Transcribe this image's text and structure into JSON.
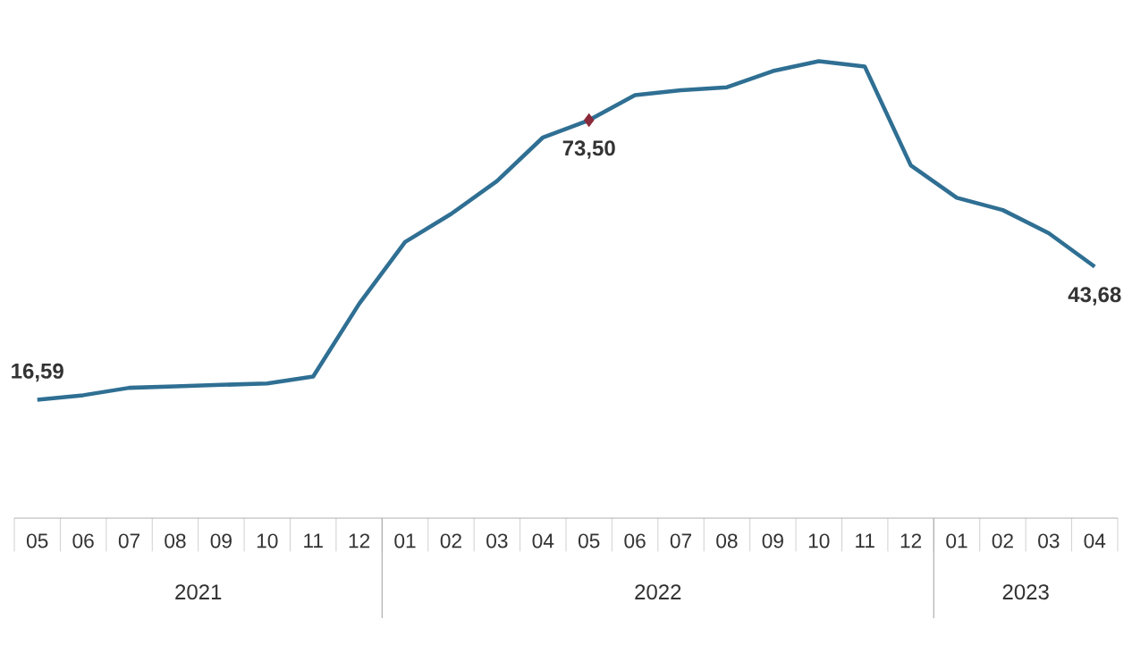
{
  "chart_data": {
    "type": "line",
    "categories": [
      "05",
      "06",
      "07",
      "08",
      "09",
      "10",
      "11",
      "12",
      "01",
      "02",
      "03",
      "04",
      "05",
      "06",
      "07",
      "08",
      "09",
      "10",
      "11",
      "12",
      "01",
      "02",
      "03",
      "04"
    ],
    "series": [
      {
        "color": "#2f6f93",
        "values": [
          16.59,
          17.5,
          19.0,
          19.3,
          19.6,
          19.9,
          21.3,
          36.1,
          48.7,
          54.4,
          61.1,
          70.0,
          73.5,
          78.6,
          79.6,
          80.2,
          83.5,
          85.5,
          84.4,
          64.3,
          57.7,
          55.2,
          50.5,
          43.68
        ],
        "value_labels": [
          "16,59",
          null,
          null,
          null,
          null,
          null,
          null,
          null,
          null,
          null,
          null,
          null,
          "73,50",
          null,
          null,
          null,
          null,
          null,
          null,
          null,
          null,
          null,
          null,
          "43,68"
        ]
      },
      {
        "type": "scatter",
        "marker": "diamond",
        "color": "#8b2a3a",
        "values": [
          null,
          null,
          null,
          null,
          null,
          null,
          null,
          null,
          null,
          null,
          null,
          null,
          73.5,
          null,
          null,
          null,
          null,
          null,
          null,
          null,
          null,
          null,
          null,
          null
        ]
      }
    ],
    "tick_labels": "x",
    "annotations": [
      "2021",
      "2022",
      "2023"
    ]
  }
}
